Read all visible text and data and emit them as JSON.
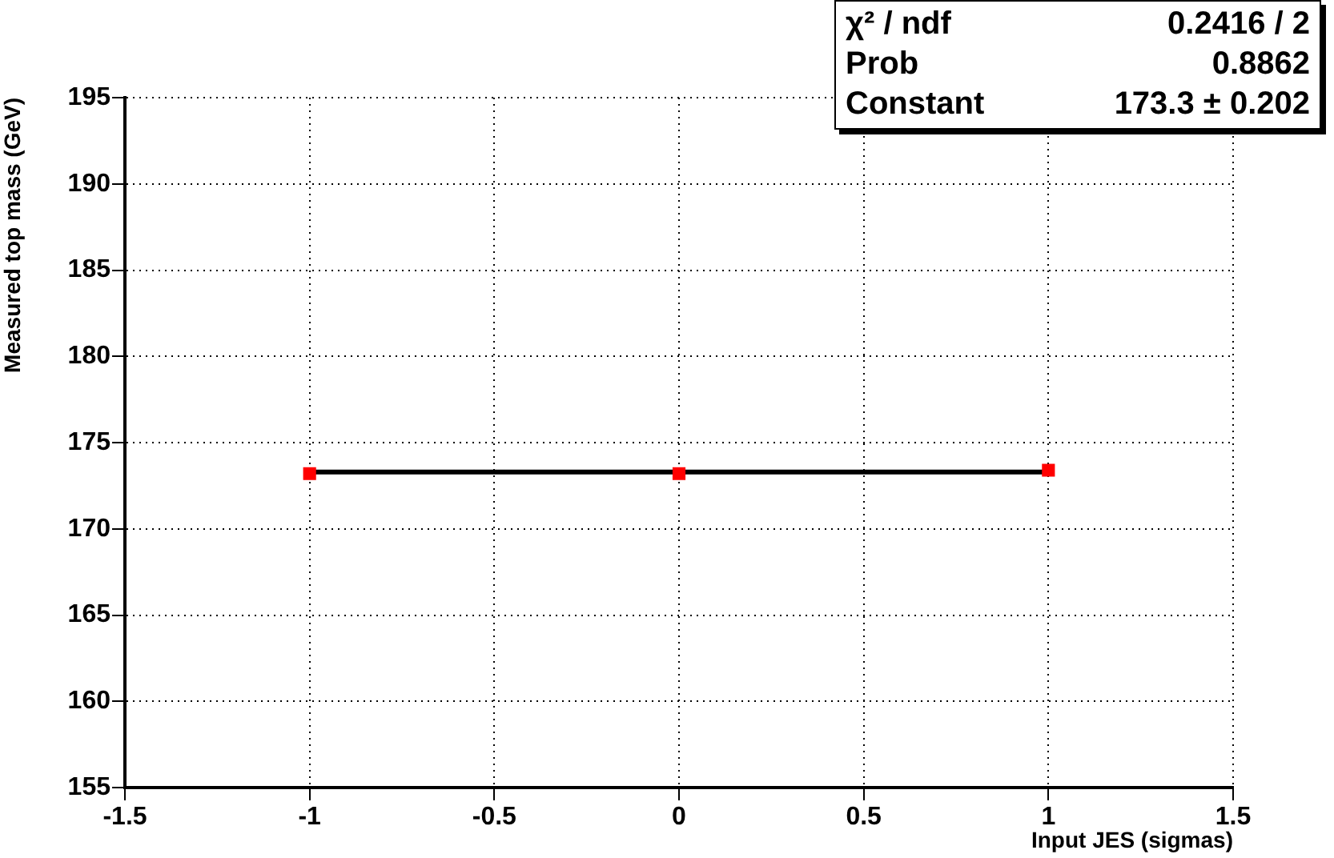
{
  "chart_data": {
    "type": "scatter",
    "xlabel": "Input JES (sigmas)",
    "ylabel": "Measured top mass (GeV)",
    "xlim": [
      -1.5,
      1.5
    ],
    "xticks": [
      -1.5,
      -1,
      -0.5,
      0,
      0.5,
      1,
      1.5
    ],
    "ylim": [
      155,
      195
    ],
    "yticks": [
      155,
      160,
      165,
      170,
      175,
      180,
      185,
      190,
      195
    ],
    "series": [
      {
        "type": "scatter",
        "color": "#ff0000",
        "x": [
          -1,
          0,
          1
        ],
        "values": [
          173.2,
          173.2,
          173.4
        ],
        "marker": "square"
      },
      {
        "type": "line",
        "color": "#000000",
        "x": [
          -1,
          1
        ],
        "values": [
          173.3,
          173.3
        ],
        "marker": "none"
      }
    ],
    "annotations": [
      "χ² / ndf",
      "0.2416 / 2",
      "Prob",
      "0.8862",
      "Constant",
      "173.3 ± 0.202"
    ],
    "grid": true,
    "legend": false
  }
}
